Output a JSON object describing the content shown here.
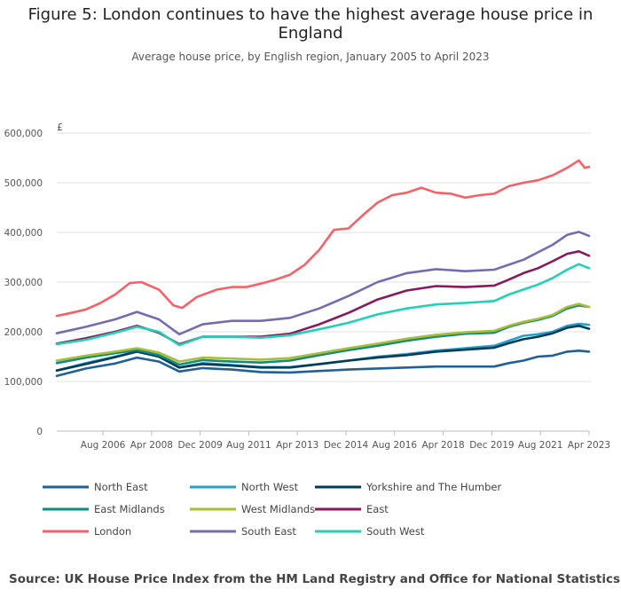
{
  "header": {
    "title": "Figure 5: London continues to have the highest average house price in England",
    "subtitle": "Average house price, by English region, January 2005 to April 2023"
  },
  "source": "Source: UK House Price Index from the HM Land Registry and Office for National Statistics",
  "chart_data": {
    "type": "line",
    "title": "Figure 5: London continues to have the highest average house price in England",
    "subtitle": "Average house price, by English region, January 2005 to April 2023",
    "y_unit": "£",
    "xlabel": "",
    "ylabel": "",
    "ylim": [
      0,
      600000
    ],
    "y_ticks": [
      0,
      100000,
      200000,
      300000,
      400000,
      500000,
      600000
    ],
    "y_tick_labels": [
      "0",
      "100,000",
      "200,000",
      "300,000",
      "400,000",
      "500,000",
      "600,000"
    ],
    "x_range": [
      "Jan 2005",
      "Apr 2023"
    ],
    "x_tick_labels": [
      "Aug 2006",
      "Apr 2008",
      "Dec 2009",
      "Aug 2011",
      "Apr 2013",
      "Dec 2014",
      "Aug 2016",
      "Apr 2018",
      "Dec 2019",
      "Aug 2021",
      "Apr 2023"
    ],
    "x_tick_positions": [
      2006.5833,
      2008.25,
      2009.9167,
      2011.5833,
      2013.25,
      2014.9167,
      2016.5833,
      2018.25,
      2019.9167,
      2021.5833,
      2023.25
    ],
    "grid": true,
    "legend_position": "bottom",
    "series": [
      {
        "name": "North East",
        "color": "#206095",
        "x": [
          2005.0,
          2006.0,
          2007.0,
          2007.75,
          2008.5,
          2009.2,
          2010.0,
          2011.0,
          2012.0,
          2013.0,
          2014.0,
          2015.0,
          2016.0,
          2017.0,
          2018.0,
          2019.0,
          2020.0,
          2020.5,
          2021.0,
          2021.5,
          2022.0,
          2022.5,
          2022.9,
          2023.25
        ],
        "y": [
          111000,
          126000,
          136000,
          148000,
          140000,
          120000,
          127000,
          124000,
          119000,
          118000,
          121000,
          124000,
          126000,
          128000,
          130000,
          130000,
          130000,
          137000,
          142000,
          150000,
          152000,
          160000,
          162000,
          160000
        ]
      },
      {
        "name": "North West",
        "color": "#27a0cc",
        "x": [
          2005.0,
          2006.0,
          2007.0,
          2007.75,
          2008.5,
          2009.2,
          2010.0,
          2011.0,
          2012.0,
          2013.0,
          2014.0,
          2015.0,
          2016.0,
          2017.0,
          2018.0,
          2019.0,
          2020.0,
          2020.5,
          2021.0,
          2021.5,
          2022.0,
          2022.5,
          2022.9,
          2023.25
        ],
        "y": [
          122000,
          137000,
          150000,
          160000,
          150000,
          128000,
          137000,
          133000,
          129000,
          129000,
          135000,
          142000,
          150000,
          155000,
          162000,
          167000,
          172000,
          182000,
          192000,
          195000,
          200000,
          212000,
          216000,
          214000
        ]
      },
      {
        "name": "Yorkshire and The Humber",
        "color": "#003c57",
        "x": [
          2005.0,
          2006.0,
          2007.0,
          2007.75,
          2008.5,
          2009.2,
          2010.0,
          2011.0,
          2012.0,
          2013.0,
          2014.0,
          2015.0,
          2016.0,
          2017.0,
          2018.0,
          2019.0,
          2020.0,
          2020.5,
          2021.0,
          2021.5,
          2022.0,
          2022.5,
          2022.9,
          2023.25
        ],
        "y": [
          122000,
          135000,
          149000,
          160000,
          150000,
          128000,
          135000,
          132000,
          128000,
          128000,
          135000,
          142000,
          148000,
          153000,
          160000,
          164000,
          168000,
          177000,
          185000,
          190000,
          197000,
          208000,
          212000,
          206000
        ]
      },
      {
        "name": "East Midlands",
        "color": "#118c7b",
        "x": [
          2005.0,
          2006.0,
          2007.0,
          2007.75,
          2008.5,
          2009.2,
          2010.0,
          2011.0,
          2012.0,
          2013.0,
          2014.0,
          2015.0,
          2016.0,
          2017.0,
          2018.0,
          2019.0,
          2020.0,
          2020.5,
          2021.0,
          2021.5,
          2022.0,
          2022.5,
          2022.9,
          2023.25
        ],
        "y": [
          137000,
          148000,
          157000,
          163000,
          153000,
          134000,
          143000,
          140000,
          138000,
          142000,
          153000,
          163000,
          172000,
          182000,
          190000,
          196000,
          198000,
          210000,
          218000,
          224000,
          232000,
          247000,
          253000,
          250000
        ]
      },
      {
        "name": "West Midlands",
        "color": "#a8bd3a",
        "x": [
          2005.0,
          2006.0,
          2007.0,
          2007.75,
          2008.5,
          2009.2,
          2010.0,
          2011.0,
          2012.0,
          2013.0,
          2014.0,
          2015.0,
          2016.0,
          2017.0,
          2018.0,
          2019.0,
          2020.0,
          2020.5,
          2021.0,
          2021.5,
          2022.0,
          2022.5,
          2022.9,
          2023.25
        ],
        "y": [
          142000,
          152000,
          160000,
          167000,
          158000,
          140000,
          148000,
          146000,
          144000,
          147000,
          157000,
          167000,
          176000,
          186000,
          194000,
          199000,
          202000,
          212000,
          220000,
          226000,
          234000,
          250000,
          256000,
          250000
        ]
      },
      {
        "name": "East",
        "color": "#871a5b",
        "x": [
          2005.0,
          2006.0,
          2007.0,
          2007.75,
          2008.5,
          2009.2,
          2010.0,
          2011.0,
          2012.0,
          2013.0,
          2014.0,
          2015.0,
          2016.0,
          2017.0,
          2018.0,
          2019.0,
          2020.0,
          2020.5,
          2021.0,
          2021.5,
          2022.0,
          2022.5,
          2022.9,
          2023.25
        ],
        "y": [
          176000,
          187000,
          200000,
          212000,
          198000,
          175000,
          190000,
          190000,
          190000,
          196000,
          215000,
          238000,
          265000,
          283000,
          292000,
          290000,
          293000,
          305000,
          318000,
          328000,
          342000,
          357000,
          362000,
          353000
        ]
      },
      {
        "name": "London",
        "color": "#f66068",
        "x": [
          2005.0,
          2005.5,
          2006.0,
          2006.5,
          2007.0,
          2007.5,
          2007.9,
          2008.5,
          2009.0,
          2009.3,
          2009.8,
          2010.5,
          2011.0,
          2011.5,
          2012.0,
          2012.5,
          2013.0,
          2013.5,
          2014.0,
          2014.5,
          2015.0,
          2015.5,
          2016.0,
          2016.5,
          2017.0,
          2017.5,
          2018.0,
          2018.5,
          2019.0,
          2019.5,
          2020.0,
          2020.5,
          2021.0,
          2021.5,
          2022.0,
          2022.5,
          2022.9,
          2023.1,
          2023.25
        ],
        "y": [
          232000,
          238000,
          245000,
          258000,
          275000,
          298000,
          300000,
          285000,
          253000,
          248000,
          270000,
          285000,
          290000,
          290000,
          297000,
          305000,
          315000,
          335000,
          365000,
          405000,
          408000,
          435000,
          460000,
          475000,
          480000,
          490000,
          480000,
          478000,
          470000,
          475000,
          478000,
          493000,
          500000,
          505000,
          515000,
          530000,
          545000,
          530000,
          532000
        ]
      },
      {
        "name": "South East",
        "color": "#746cb1",
        "x": [
          2005.0,
          2006.0,
          2007.0,
          2007.75,
          2008.5,
          2009.2,
          2010.0,
          2011.0,
          2012.0,
          2013.0,
          2014.0,
          2015.0,
          2016.0,
          2017.0,
          2018.0,
          2019.0,
          2020.0,
          2020.5,
          2021.0,
          2021.5,
          2022.0,
          2022.5,
          2022.9,
          2023.25
        ],
        "y": [
          197000,
          210000,
          225000,
          240000,
          225000,
          195000,
          215000,
          222000,
          222000,
          228000,
          247000,
          272000,
          300000,
          318000,
          326000,
          322000,
          325000,
          335000,
          345000,
          360000,
          375000,
          395000,
          401000,
          393000
        ]
      },
      {
        "name": "South West",
        "color": "#22d0b6",
        "x": [
          2005.0,
          2006.0,
          2007.0,
          2007.75,
          2008.5,
          2009.2,
          2010.0,
          2011.0,
          2012.0,
          2013.0,
          2014.0,
          2015.0,
          2016.0,
          2017.0,
          2018.0,
          2019.0,
          2020.0,
          2020.5,
          2021.0,
          2021.5,
          2022.0,
          2022.5,
          2022.9,
          2023.25
        ],
        "y": [
          175000,
          184000,
          198000,
          210000,
          200000,
          173000,
          190000,
          190000,
          188000,
          193000,
          205000,
          218000,
          235000,
          247000,
          255000,
          258000,
          262000,
          275000,
          285000,
          295000,
          308000,
          325000,
          336000,
          328000
        ]
      }
    ]
  }
}
